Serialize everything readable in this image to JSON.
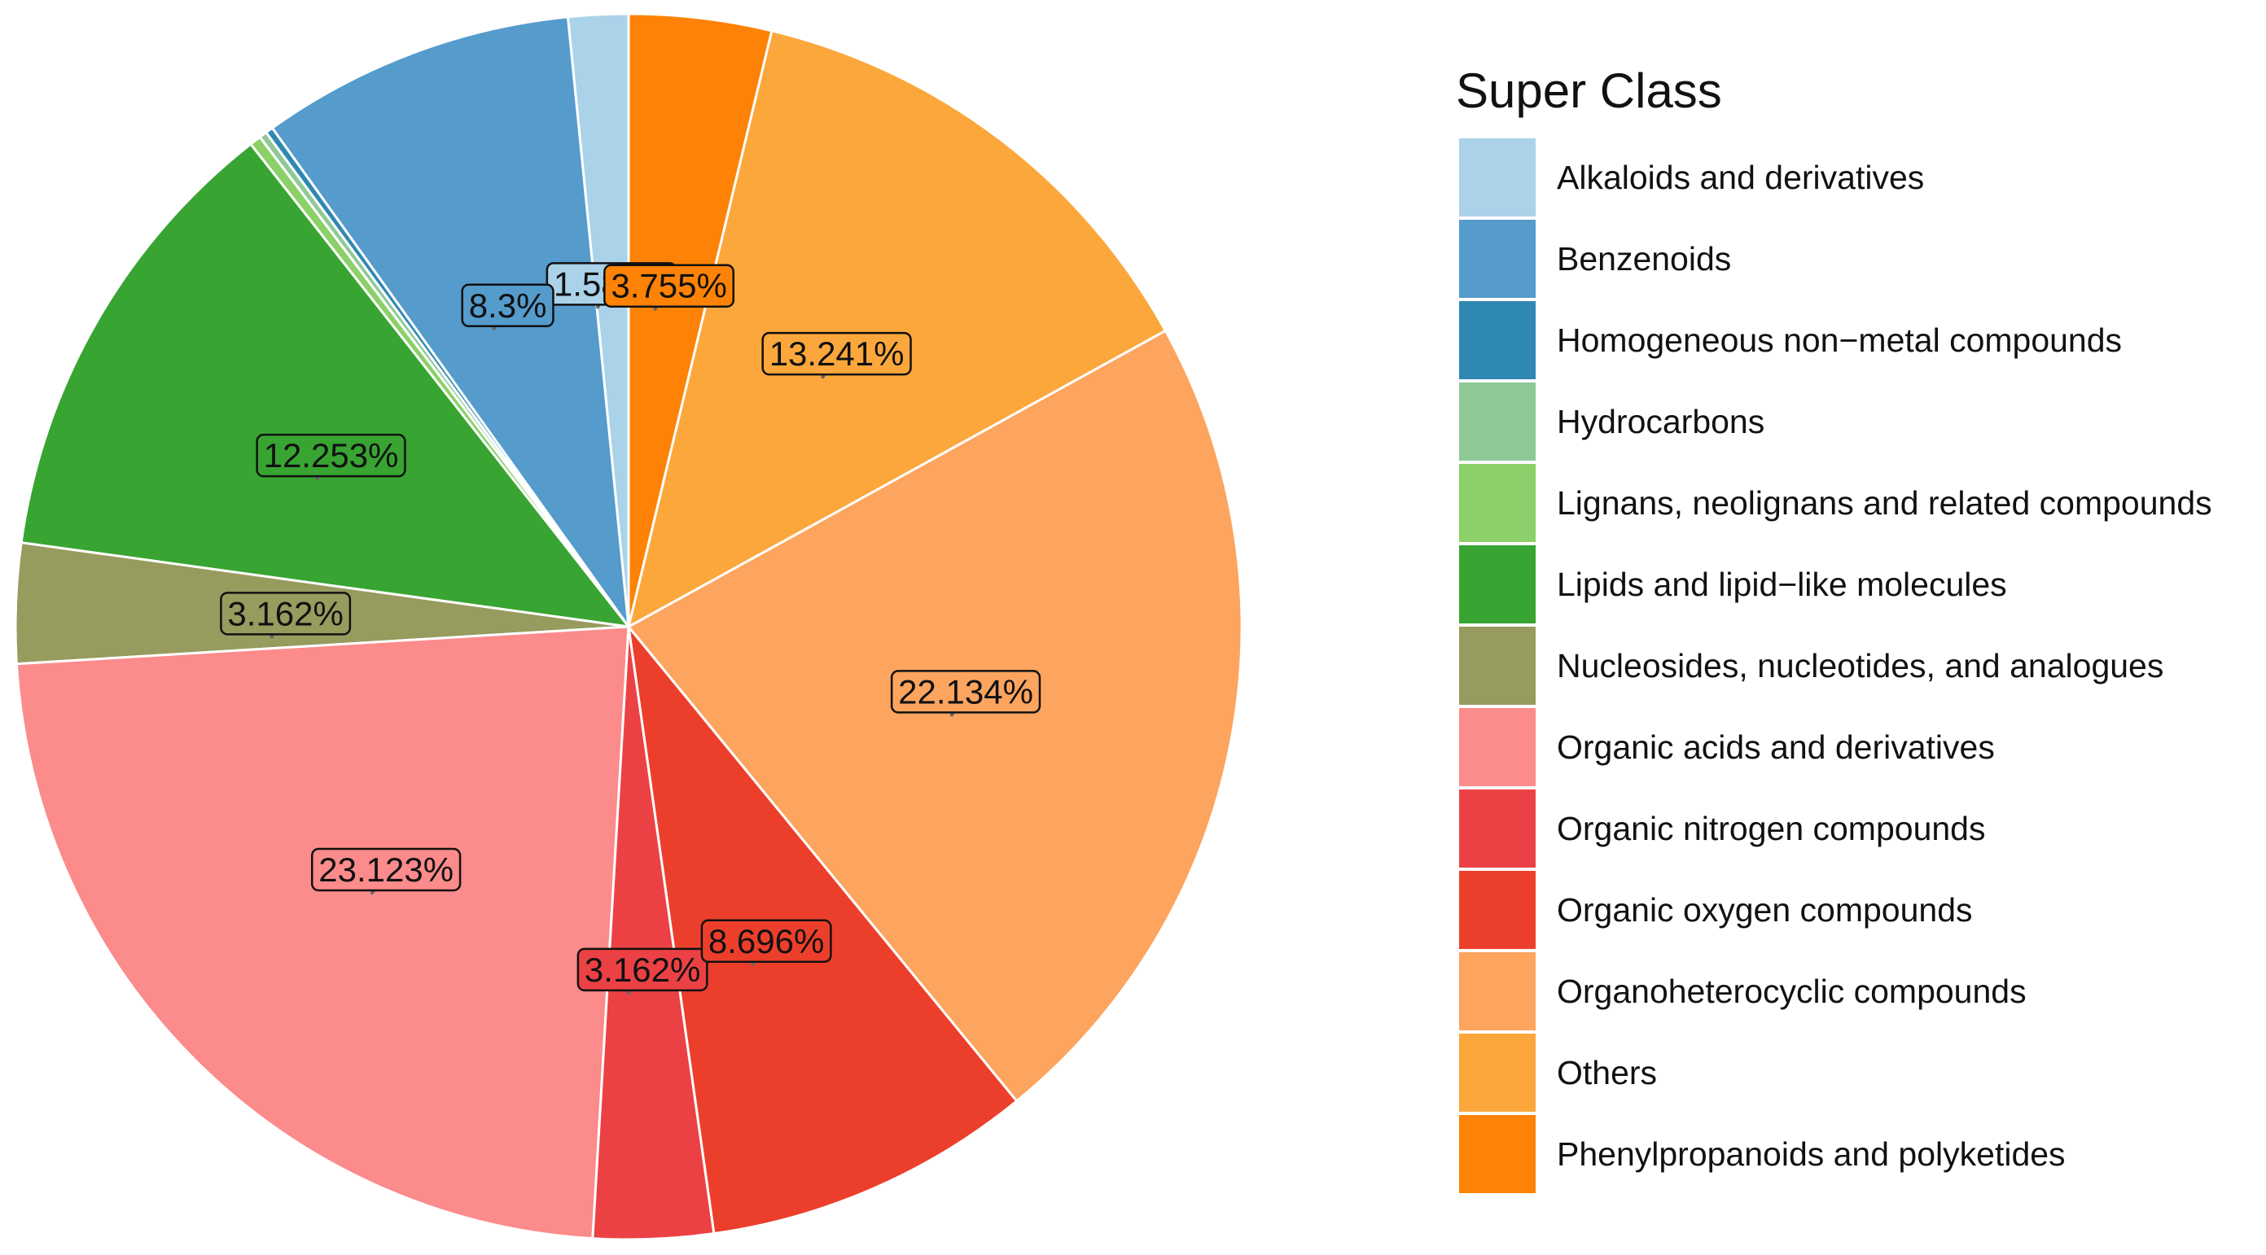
{
  "chart_data": {
    "type": "pie",
    "title": "",
    "legend": {
      "title": "Super Class",
      "placement": "right"
    },
    "series": [
      {
        "name": "Alkaloids and derivatives",
        "value": 1.581,
        "label": "1.581%",
        "color": "#AAD3E9"
      },
      {
        "name": "Benzenoids",
        "value": 8.3,
        "label": "8.3%",
        "color": "#559BCC"
      },
      {
        "name": "Homogeneous non−metal compounds",
        "value": 0.2,
        "label": "",
        "color": "#2F88B2"
      },
      {
        "name": "Hydrocarbons",
        "value": 0.2,
        "label": "",
        "color": "#8FC997"
      },
      {
        "name": "Lignans, neolignans and related compounds",
        "value": 0.3,
        "label": "",
        "color": "#8BD068"
      },
      {
        "name": "Lipids and lipid−like molecules",
        "value": 12.253,
        "label": "12.253%",
        "color": "#38A432"
      },
      {
        "name": "Nucleosides, nucleotides, and analogues",
        "value": 3.162,
        "label": "3.162%",
        "color": "#979B5E"
      },
      {
        "name": "Organic acids and derivatives",
        "value": 23.123,
        "label": "23.123%",
        "color": "#FC8B8B"
      },
      {
        "name": "Organic nitrogen compounds",
        "value": 3.162,
        "label": "3.162%",
        "color": "#EC4144"
      },
      {
        "name": "Organic oxygen compounds",
        "value": 8.696,
        "label": "8.696%",
        "color": "#EC3F2B"
      },
      {
        "name": "Organoheterocyclic compounds",
        "value": 22.134,
        "label": "22.134%",
        "color": "#FDA45E"
      },
      {
        "name": "Others",
        "value": 13.241,
        "label": "13.241%",
        "color": "#FCA73B"
      },
      {
        "name": "Phenylpropanoids and polyketides",
        "value": 3.755,
        "label": "3.755%",
        "color": "#FD8205"
      }
    ]
  }
}
